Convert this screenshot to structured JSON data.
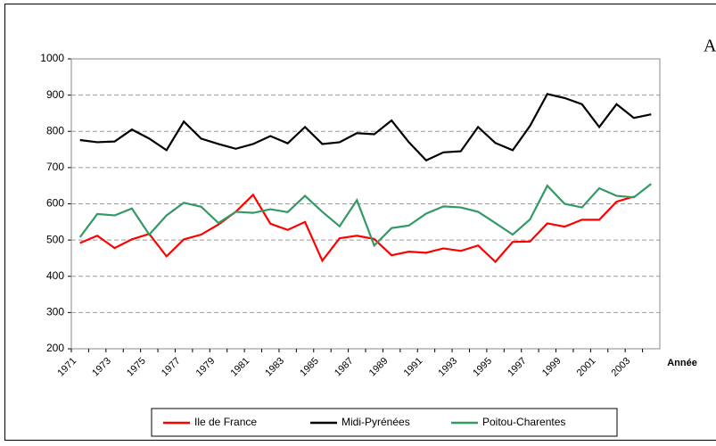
{
  "chart_data": {
    "type": "line",
    "annotation": "A",
    "x_label": "Année",
    "categories": [
      "1971",
      null,
      "1973",
      null,
      "1975",
      null,
      "1977",
      null,
      "1979",
      null,
      "1981",
      null,
      "1983",
      null,
      "1985",
      null,
      "1987",
      null,
      "1989",
      null,
      "1991",
      null,
      "1993",
      null,
      "1995",
      null,
      "1997",
      null,
      "1999",
      null,
      "2001",
      null,
      "2003",
      null
    ],
    "series": [
      {
        "name": "Ile de France",
        "color": "#ff0000",
        "values": [
          492,
          512,
          478,
          502,
          517,
          455,
          502,
          515,
          543,
          578,
          625,
          545,
          528,
          550,
          443,
          505,
          512,
          503,
          458,
          468,
          465,
          477,
          470,
          485,
          440,
          495,
          496,
          546,
          537,
          556,
          556,
          606,
          620,
          null
        ]
      },
      {
        "name": "Midi-Pyrénées",
        "color": "#000000",
        "values": [
          776,
          770,
          772,
          805,
          780,
          748,
          827,
          780,
          765,
          752,
          765,
          787,
          767,
          812,
          765,
          770,
          795,
          792,
          830,
          770,
          720,
          742,
          745,
          812,
          768,
          748,
          815,
          903,
          892,
          875,
          812,
          875,
          837,
          847
        ]
      },
      {
        "name": "Poitou-Charentes",
        "color": "#339966",
        "values": [
          508,
          572,
          568,
          587,
          515,
          568,
          603,
          592,
          547,
          578,
          575,
          585,
          577,
          622,
          578,
          538,
          610,
          485,
          533,
          540,
          573,
          593,
          590,
          578,
          547,
          515,
          557,
          650,
          600,
          590,
          643,
          622,
          618,
          655
        ]
      }
    ],
    "ylim": [
      200,
      1000
    ],
    "yticks": [
      200,
      300,
      400,
      500,
      600,
      700,
      800,
      900,
      1000
    ],
    "grid": true,
    "legend": "bottom"
  }
}
